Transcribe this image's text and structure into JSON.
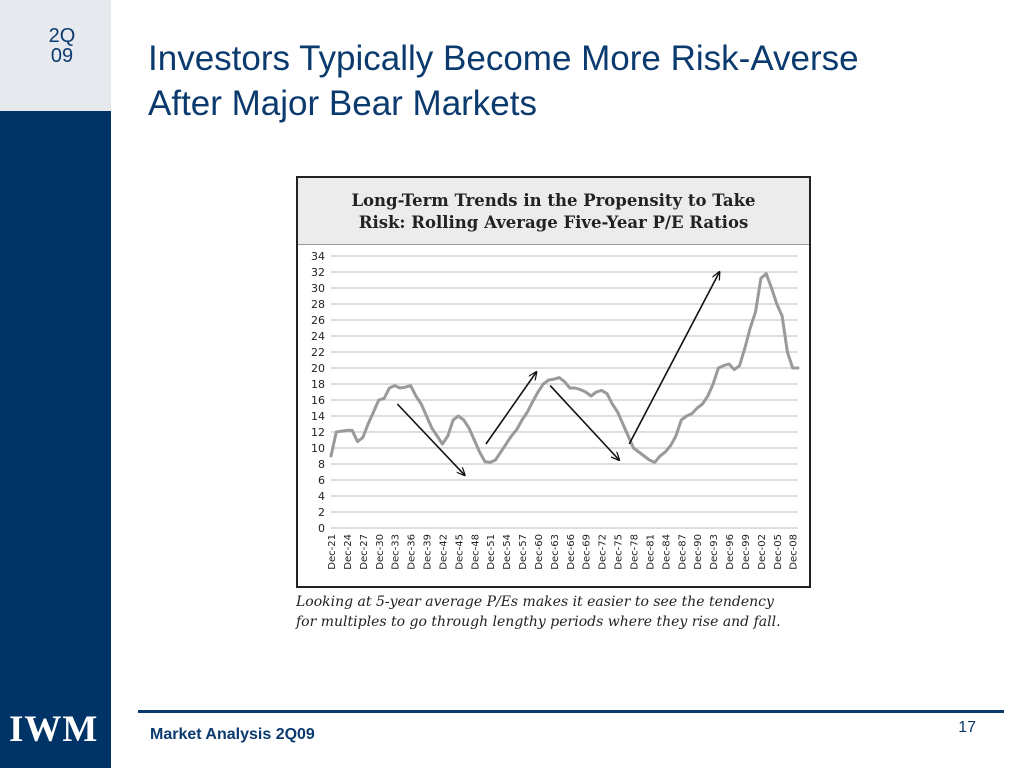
{
  "header": {
    "quarter_line1": "2Q",
    "quarter_line2": "09"
  },
  "title": {
    "line1": "Investors Typically Become More Risk-Averse",
    "line2": "After Major Bear Markets"
  },
  "logo": "IWM",
  "figure": {
    "heading_line1": "Long-Term Trends in the Propensity to Take",
    "heading_line2": "Risk: Rolling Average Five-Year P/E Ratios",
    "caption_line1": "Looking at 5-year average P/Es makes it easier to see the tendency",
    "caption_line2": "for multiples to go through lengthy periods where they rise and fall."
  },
  "footer": {
    "text": "Market Analysis 2Q09",
    "page": "17"
  },
  "colors": {
    "sidebar": "#003466",
    "accent": "#0b3a6e",
    "line": "#9a9a9a",
    "grid": "#d4d4d4"
  },
  "chart_data": {
    "type": "line",
    "x_start_year": 1921,
    "x_end_year": 2009,
    "categories": [
      "Dec-21",
      "Dec-24",
      "Dec-27",
      "Dec-30",
      "Dec-33",
      "Dec-36",
      "Dec-39",
      "Dec-42",
      "Dec-45",
      "Dec-48",
      "Dec-51",
      "Dec-54",
      "Dec-57",
      "Dec-60",
      "Dec-63",
      "Dec-66",
      "Dec-69",
      "Dec-72",
      "Dec-75",
      "Dec-78",
      "Dec-81",
      "Dec-84",
      "Dec-87",
      "Dec-90",
      "Dec-93",
      "Dec-96",
      "Dec-99",
      "Dec-02",
      "Dec-05",
      "Dec-08"
    ],
    "ylim": [
      0,
      34
    ],
    "yticks": [
      0,
      2,
      4,
      6,
      8,
      10,
      12,
      14,
      16,
      18,
      20,
      22,
      24,
      26,
      28,
      30,
      32,
      34
    ],
    "grid": true,
    "series": [
      {
        "points": [
          [
            1921,
            9
          ],
          [
            1922,
            12
          ],
          [
            1924,
            12.2
          ],
          [
            1925,
            12.2
          ],
          [
            1926,
            10.8
          ],
          [
            1927,
            11.3
          ],
          [
            1928,
            13
          ],
          [
            1929,
            14.5
          ],
          [
            1930,
            16
          ],
          [
            1931,
            16.2
          ],
          [
            1932,
            17.5
          ],
          [
            1933,
            17.8
          ],
          [
            1934,
            17.5
          ],
          [
            1935,
            17.6
          ],
          [
            1936,
            17.8
          ],
          [
            1937,
            16.5
          ],
          [
            1938,
            15.5
          ],
          [
            1939,
            14
          ],
          [
            1940,
            12.5
          ],
          [
            1941,
            11.5
          ],
          [
            1942,
            10.5
          ],
          [
            1943,
            11.5
          ],
          [
            1944,
            13.5
          ],
          [
            1945,
            14
          ],
          [
            1946,
            13.5
          ],
          [
            1947,
            12.5
          ],
          [
            1948,
            11
          ],
          [
            1949,
            9.5
          ],
          [
            1950,
            8.3
          ],
          [
            1951,
            8.2
          ],
          [
            1952,
            8.5
          ],
          [
            1953,
            9.5
          ],
          [
            1954,
            10.5
          ],
          [
            1955,
            11.5
          ],
          [
            1956,
            12.3
          ],
          [
            1957,
            13.5
          ],
          [
            1958,
            14.5
          ],
          [
            1959,
            15.8
          ],
          [
            1960,
            17
          ],
          [
            1961,
            18
          ],
          [
            1962,
            18.5
          ],
          [
            1963,
            18.6
          ],
          [
            1964,
            18.8
          ],
          [
            1965,
            18.3
          ],
          [
            1966,
            17.5
          ],
          [
            1967,
            17.5
          ],
          [
            1968,
            17.3
          ],
          [
            1969,
            17
          ],
          [
            1970,
            16.5
          ],
          [
            1971,
            17
          ],
          [
            1972,
            17.2
          ],
          [
            1973,
            16.8
          ],
          [
            1974,
            15.5
          ],
          [
            1975,
            14.5
          ],
          [
            1976,
            13
          ],
          [
            1977,
            11.5
          ],
          [
            1978,
            10
          ],
          [
            1979,
            9.5
          ],
          [
            1980,
            9
          ],
          [
            1981,
            8.5
          ],
          [
            1982,
            8.2
          ],
          [
            1983,
            9
          ],
          [
            1984,
            9.5
          ],
          [
            1985,
            10.3
          ],
          [
            1986,
            11.5
          ],
          [
            1987,
            13.5
          ],
          [
            1988,
            14
          ],
          [
            1989,
            14.3
          ],
          [
            1990,
            15
          ],
          [
            1991,
            15.5
          ],
          [
            1992,
            16.5
          ],
          [
            1993,
            18
          ],
          [
            1994,
            20
          ],
          [
            1995,
            20.3
          ],
          [
            1996,
            20.5
          ],
          [
            1997,
            19.8
          ],
          [
            1998,
            20.3
          ],
          [
            1999,
            22.5
          ],
          [
            2000,
            25
          ],
          [
            2001,
            27
          ],
          [
            2002,
            31.2
          ],
          [
            2003,
            31.8
          ],
          [
            2004,
            30
          ],
          [
            2005,
            28
          ],
          [
            2006,
            26.5
          ],
          [
            2007,
            22
          ],
          [
            2008,
            20
          ],
          [
            2009,
            20
          ]
        ]
      }
    ],
    "annotations": [
      {
        "type": "arrow",
        "from": [
          1933.5,
          15.5
        ],
        "to": [
          1946.2,
          6.6
        ]
      },
      {
        "type": "arrow",
        "from": [
          1950.2,
          10.5
        ],
        "to": [
          1959.7,
          19.5
        ]
      },
      {
        "type": "arrow",
        "from": [
          1962.3,
          17.8
        ],
        "to": [
          1975.3,
          8.5
        ]
      },
      {
        "type": "arrow",
        "from": [
          1977.2,
          10.5
        ],
        "to": [
          1994.2,
          32
        ]
      }
    ]
  }
}
